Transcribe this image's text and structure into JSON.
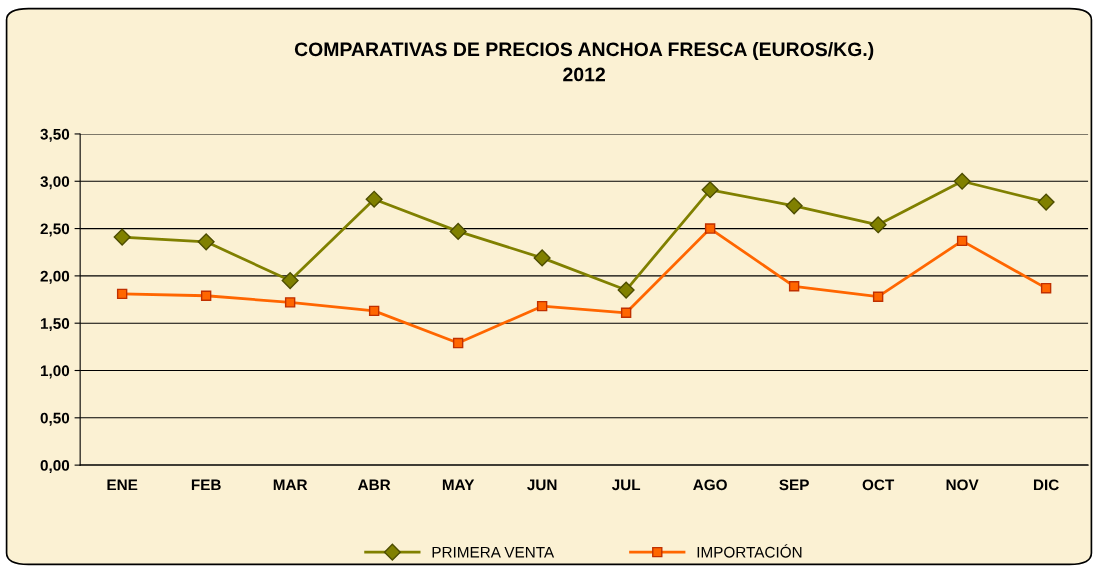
{
  "chart_data": {
    "type": "line",
    "title": "COMPARATIVAS DE PRECIOS ANCHOA FRESCA (EUROS/KG.)\n2012",
    "categories": [
      "ENE",
      "FEB",
      "MAR",
      "ABR",
      "MAY",
      "JUN",
      "JUL",
      "AGO",
      "SEP",
      "OCT",
      "NOV",
      "DIC"
    ],
    "series": [
      {
        "name": "PRIMERA VENTA",
        "color": "#808000",
        "marker": "diamond",
        "values": [
          2.41,
          2.36,
          1.95,
          2.81,
          2.47,
          2.19,
          1.85,
          2.91,
          2.74,
          2.54,
          3.0,
          2.78
        ]
      },
      {
        "name": "IMPORTACIÓN",
        "color": "#ff6600",
        "marker": "square",
        "values": [
          1.81,
          1.79,
          1.72,
          1.63,
          1.29,
          1.68,
          1.61,
          2.5,
          1.89,
          1.78,
          2.37,
          1.87
        ]
      }
    ],
    "ylim": [
      0,
      3.5
    ],
    "yticks": [
      {
        "value": 0,
        "label": "0,00"
      },
      {
        "value": 0.5,
        "label": "0,50"
      },
      {
        "value": 1,
        "label": "1,00"
      },
      {
        "value": 1.5,
        "label": "1,50"
      },
      {
        "value": 2,
        "label": "2,00"
      },
      {
        "value": 2.5,
        "label": "2,50"
      },
      {
        "value": 3,
        "label": "3,00"
      },
      {
        "value": 3.5,
        "label": "3,50"
      }
    ],
    "grid": "y",
    "legend": "bottom",
    "line_style": "solid"
  }
}
